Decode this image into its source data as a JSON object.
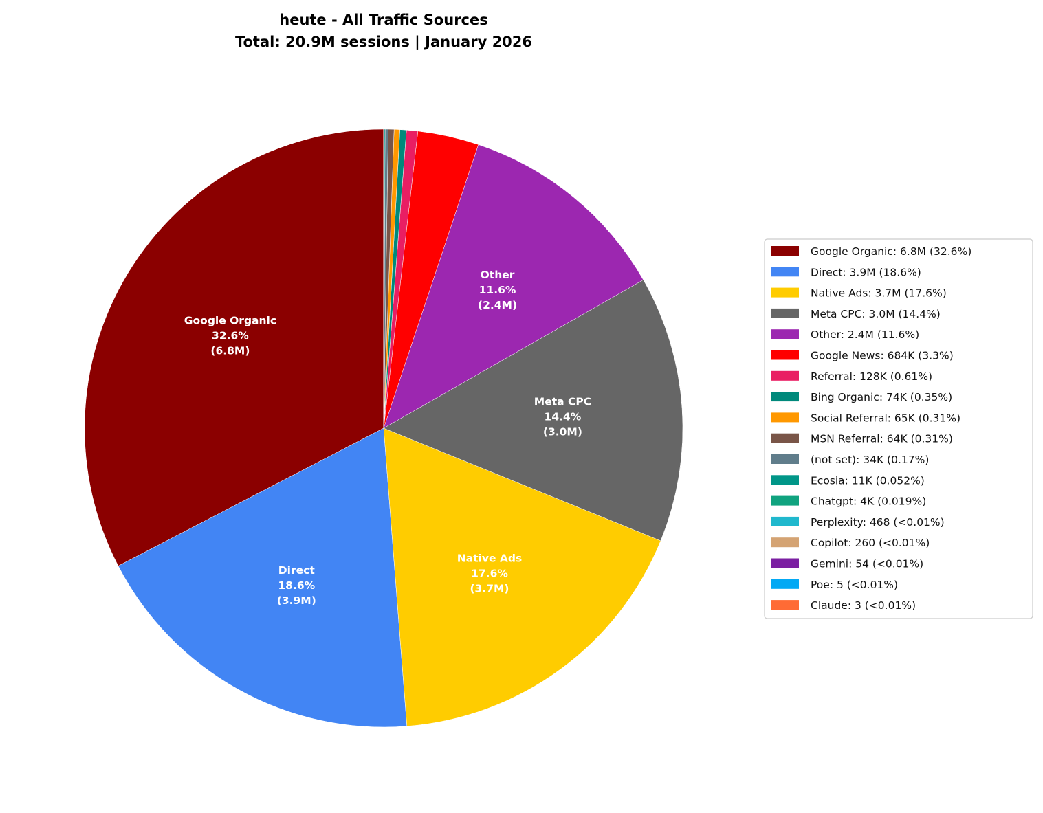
{
  "chart_data": {
    "type": "pie",
    "title_lines": [
      "heute - All Traffic Sources",
      "Total: 20.9M sessions | January 2026"
    ],
    "start_angle_deg": 90,
    "direction": "counterclockwise",
    "legend_position": "right",
    "slices": [
      {
        "name": "Google Organic",
        "value_text": "6.8M",
        "pct_text": "32.6%",
        "pct": 32.6,
        "color": "#8B0000",
        "legend": "Google Organic: 6.8M (32.6%)",
        "inner_label": [
          "Google Organic",
          "32.6%",
          "(6.8M)"
        ]
      },
      {
        "name": "Direct",
        "value_text": "3.9M",
        "pct_text": "18.6%",
        "pct": 18.6,
        "color": "#4285F4",
        "legend": "Direct: 3.9M (18.6%)",
        "inner_label": [
          "Direct",
          "18.6%",
          "(3.9M)"
        ]
      },
      {
        "name": "Native Ads",
        "value_text": "3.7M",
        "pct_text": "17.6%",
        "pct": 17.6,
        "color": "#FFCC00",
        "legend": "Native Ads: 3.7M (17.6%)",
        "inner_label": [
          "Native Ads",
          "17.6%",
          "(3.7M)"
        ]
      },
      {
        "name": "Meta CPC",
        "value_text": "3.0M",
        "pct_text": "14.4%",
        "pct": 14.4,
        "color": "#666666",
        "legend": "Meta CPC: 3.0M (14.4%)",
        "inner_label": [
          "Meta CPC",
          "14.4%",
          "(3.0M)"
        ]
      },
      {
        "name": "Other",
        "value_text": "2.4M",
        "pct_text": "11.6%",
        "pct": 11.6,
        "color": "#9C27B0",
        "legend": "Other: 2.4M (11.6%)",
        "inner_label": [
          "Other",
          "11.6%",
          "(2.4M)"
        ]
      },
      {
        "name": "Google News",
        "value_text": "684K",
        "pct_text": "3.3%",
        "pct": 3.3,
        "color": "#FF0000",
        "legend": "Google News: 684K (3.3%)"
      },
      {
        "name": "Referral",
        "value_text": "128K",
        "pct_text": "0.61%",
        "pct": 0.61,
        "color": "#E91E63",
        "legend": "Referral: 128K (0.61%)"
      },
      {
        "name": "Bing Organic",
        "value_text": "74K",
        "pct_text": "0.35%",
        "pct": 0.35,
        "color": "#00897B",
        "legend": "Bing Organic: 74K (0.35%)"
      },
      {
        "name": "Social Referral",
        "value_text": "65K",
        "pct_text": "0.31%",
        "pct": 0.31,
        "color": "#FF9800",
        "legend": "Social Referral: 65K (0.31%)"
      },
      {
        "name": "MSN Referral",
        "value_text": "64K",
        "pct_text": "0.31%",
        "pct": 0.31,
        "color": "#795548",
        "legend": "MSN Referral: 64K (0.31%)"
      },
      {
        "name": "(not set)",
        "value_text": "34K",
        "pct_text": "0.17%",
        "pct": 0.17,
        "color": "#607D8B",
        "legend": "(not set): 34K (0.17%)"
      },
      {
        "name": "Ecosia",
        "value_text": "11K",
        "pct_text": "0.052%",
        "pct": 0.052,
        "color": "#009688",
        "legend": "Ecosia: 11K (0.052%)"
      },
      {
        "name": "Chatgpt",
        "value_text": "4K",
        "pct_text": "0.019%",
        "pct": 0.019,
        "color": "#10A37F",
        "legend": "Chatgpt: 4K (0.019%)"
      },
      {
        "name": "Perplexity",
        "value_text": "468",
        "pct_text": "<0.01%",
        "pct": 0.0022,
        "color": "#20B8CD",
        "legend": "Perplexity: 468 (<0.01%)"
      },
      {
        "name": "Copilot",
        "value_text": "260",
        "pct_text": "<0.01%",
        "pct": 0.0012,
        "color": "#D4A373",
        "legend": "Copilot: 260 (<0.01%)"
      },
      {
        "name": "Gemini",
        "value_text": "54",
        "pct_text": "<0.01%",
        "pct": 0.00026,
        "color": "#7B1FA2",
        "legend": "Gemini: 54 (<0.01%)"
      },
      {
        "name": "Poe",
        "value_text": "5",
        "pct_text": "<0.01%",
        "pct": 2e-05,
        "color": "#03A9F4",
        "legend": "Poe: 5 (<0.01%)"
      },
      {
        "name": "Claude",
        "value_text": "3",
        "pct_text": "<0.01%",
        "pct": 1e-05,
        "color": "#FF6B35",
        "legend": "Claude: 3 (<0.01%)"
      }
    ]
  }
}
